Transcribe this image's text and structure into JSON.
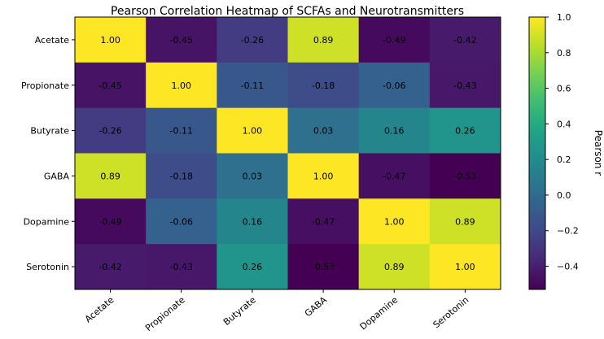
{
  "chart_data": {
    "type": "heatmap",
    "title": "Pearson Correlation Heatmap of SCFAs and Neurotransmitters",
    "x_categories": [
      "Acetate",
      "Propionate",
      "Butyrate",
      "GABA",
      "Dopamine",
      "Serotonin"
    ],
    "y_categories": [
      "Acetate",
      "Propionate",
      "Butyrate",
      "GABA",
      "Dopamine",
      "Serotonin"
    ],
    "values": [
      [
        1.0,
        -0.45,
        -0.26,
        0.89,
        -0.49,
        -0.42
      ],
      [
        -0.45,
        1.0,
        -0.11,
        -0.18,
        -0.06,
        -0.43
      ],
      [
        -0.26,
        -0.11,
        1.0,
        0.03,
        0.16,
        0.26
      ],
      [
        0.89,
        -0.18,
        0.03,
        1.0,
        -0.47,
        -0.53
      ],
      [
        -0.49,
        -0.06,
        0.16,
        -0.47,
        1.0,
        0.89
      ],
      [
        -0.42,
        -0.43,
        0.26,
        -0.53,
        0.89,
        1.0
      ]
    ],
    "value_labels": [
      [
        "1.00",
        "-0.45",
        "-0.26",
        "0.89",
        "-0.49",
        "-0.42"
      ],
      [
        "-0.45",
        "1.00",
        "-0.11",
        "-0.18",
        "-0.06",
        "-0.43"
      ],
      [
        "-0.26",
        "-0.11",
        "1.00",
        "0.03",
        "0.16",
        "0.26"
      ],
      [
        "0.89",
        "-0.18",
        "0.03",
        "1.00",
        "-0.47",
        "-0.53"
      ],
      [
        "-0.49",
        "-0.06",
        "0.16",
        "-0.47",
        "1.00",
        "0.89"
      ],
      [
        "-0.42",
        "-0.43",
        "0.26",
        "-0.53",
        "0.89",
        "1.00"
      ]
    ],
    "colormap": "viridis",
    "colorbar": {
      "label": "Pearson r",
      "range": [
        -0.53,
        1.0
      ],
      "ticks": [
        1.0,
        0.8,
        0.6,
        0.4,
        0.2,
        0.0,
        -0.2,
        -0.4
      ],
      "tick_labels": [
        "1.0",
        "0.8",
        "0.6",
        "0.4",
        "0.2",
        "0.0",
        "−0.2",
        "−0.4"
      ]
    },
    "grid": false,
    "legend": "right"
  }
}
